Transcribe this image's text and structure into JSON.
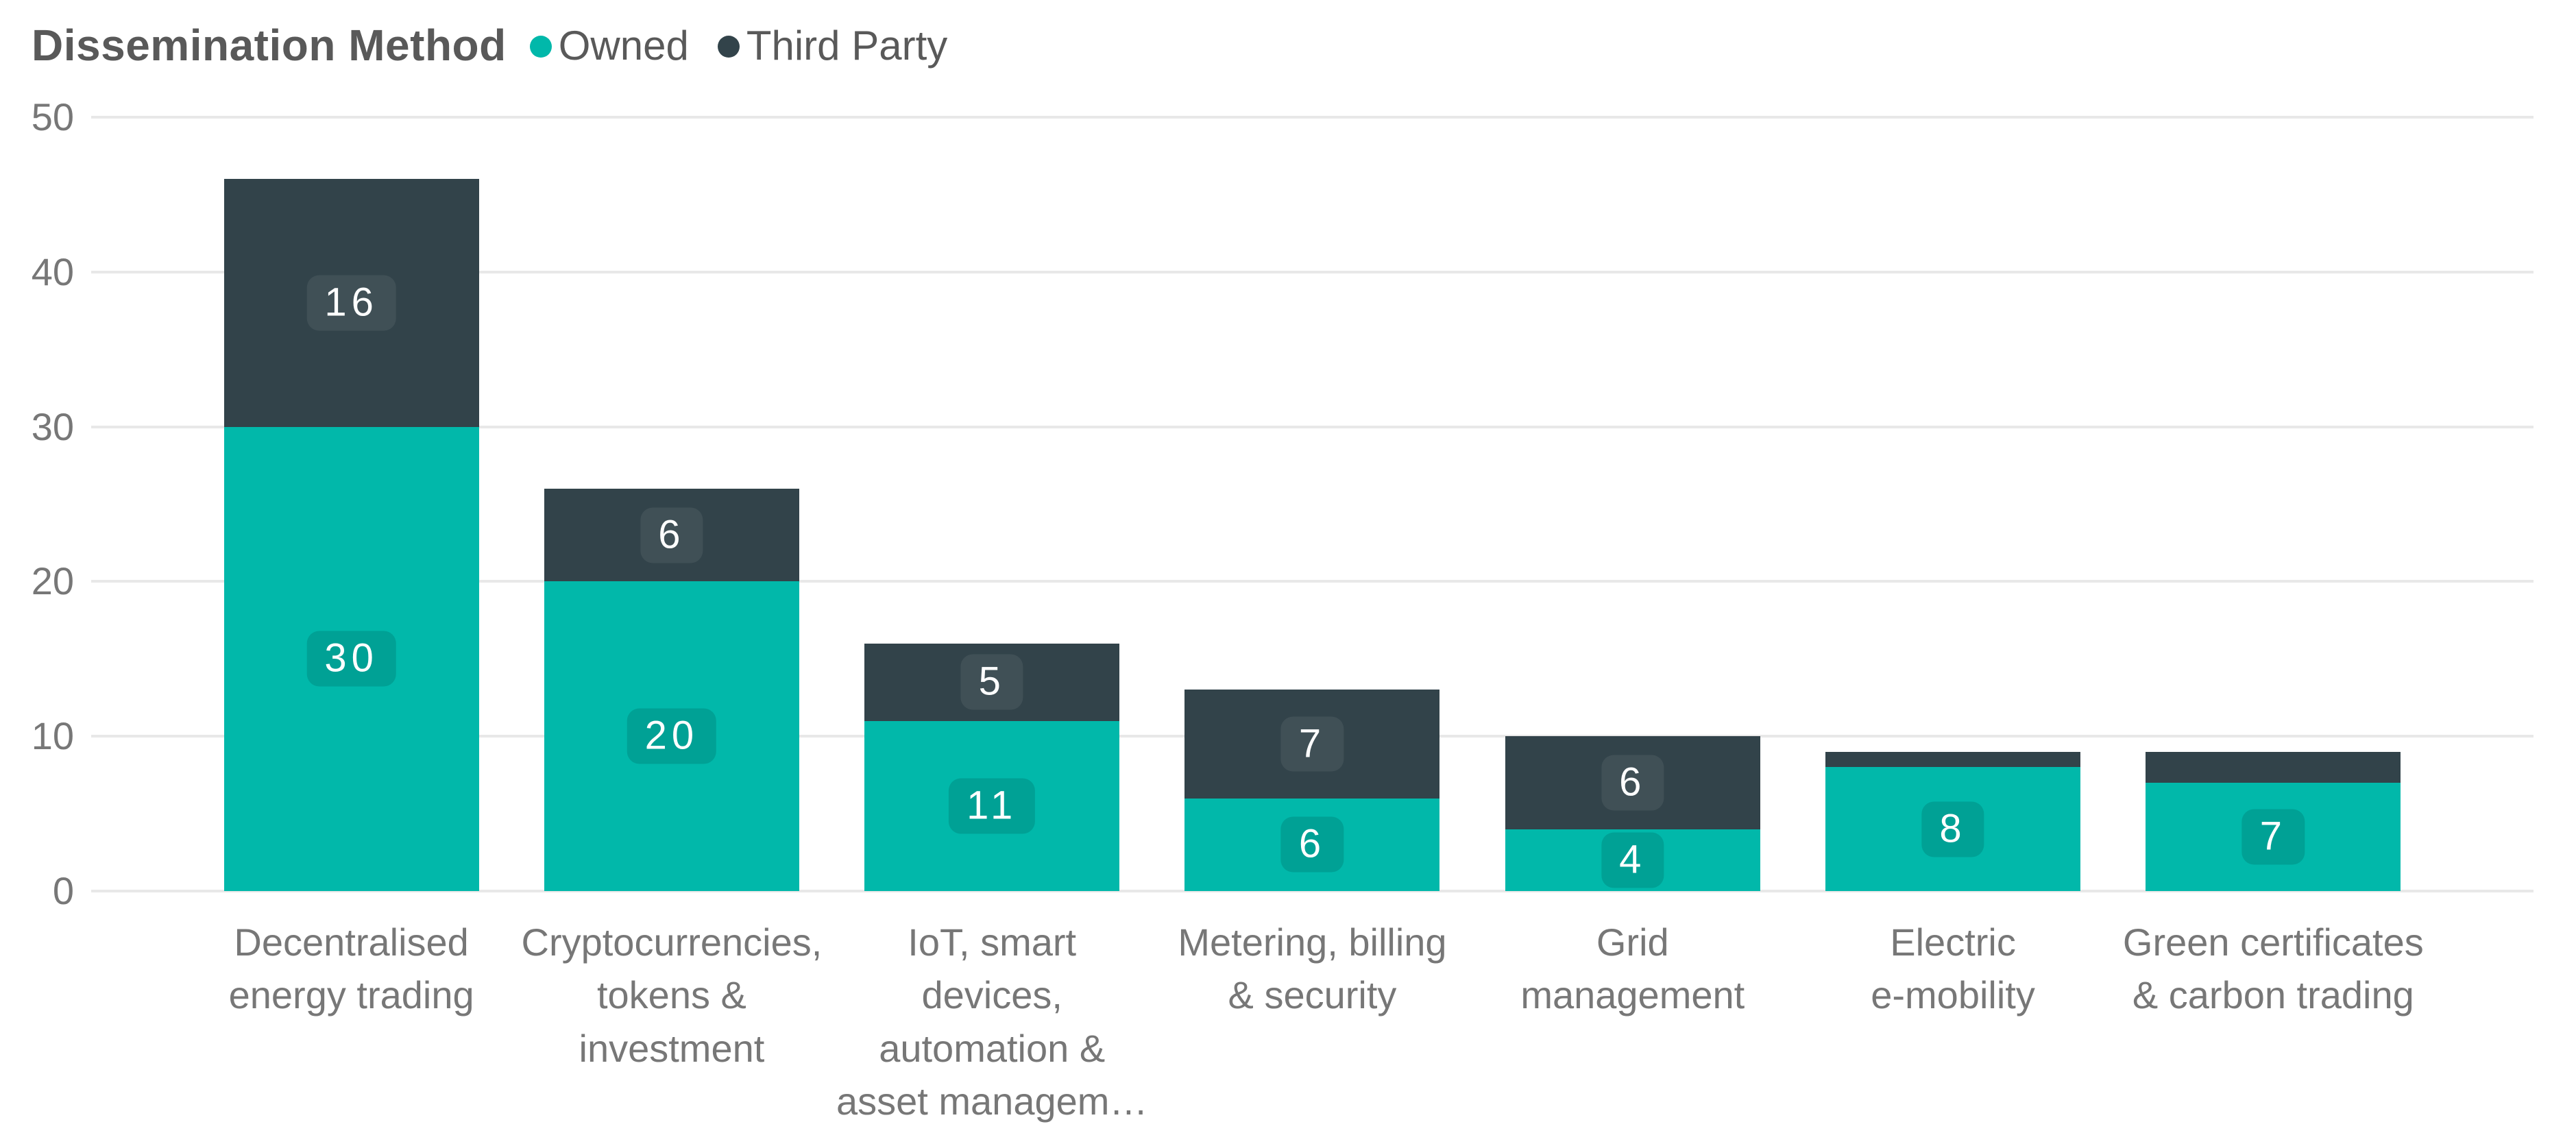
{
  "header": {
    "title": "Dissemination Method"
  },
  "chart_data": {
    "type": "bar",
    "stacked": true,
    "title": "Dissemination Method",
    "legend_position": "top",
    "grid": true,
    "ylim": [
      0,
      50
    ],
    "yticks": [
      0,
      10,
      20,
      30,
      40,
      50
    ],
    "colors": {
      "owned": "#01B8AA",
      "third_party": "#32434A",
      "gridline": "#e8e8e8",
      "axis_text": "#777777",
      "title_text": "#595959"
    },
    "categories": [
      "Decentralised\nenergy trading",
      "Cryptocurrencies,\ntokens &\ninvestment",
      "IoT, smart\ndevices,\nautomation &\nasset managem…",
      "Metering, billing\n& security",
      "Grid\nmanagement",
      "Electric\ne-mobility",
      "Green certificates\n& carbon trading"
    ],
    "series": [
      {
        "name": "Owned",
        "color": "#01B8AA",
        "values": [
          30,
          20,
          11,
          6,
          4,
          8,
          7
        ],
        "labels": [
          "30",
          "20",
          "11",
          "6",
          "4",
          "8",
          "7"
        ]
      },
      {
        "name": "Third Party",
        "color": "#32434A",
        "values": [
          16,
          6,
          5,
          7,
          6,
          1,
          2
        ],
        "labels": [
          "16",
          "6",
          "5",
          "7",
          "6",
          "",
          ""
        ]
      }
    ]
  }
}
